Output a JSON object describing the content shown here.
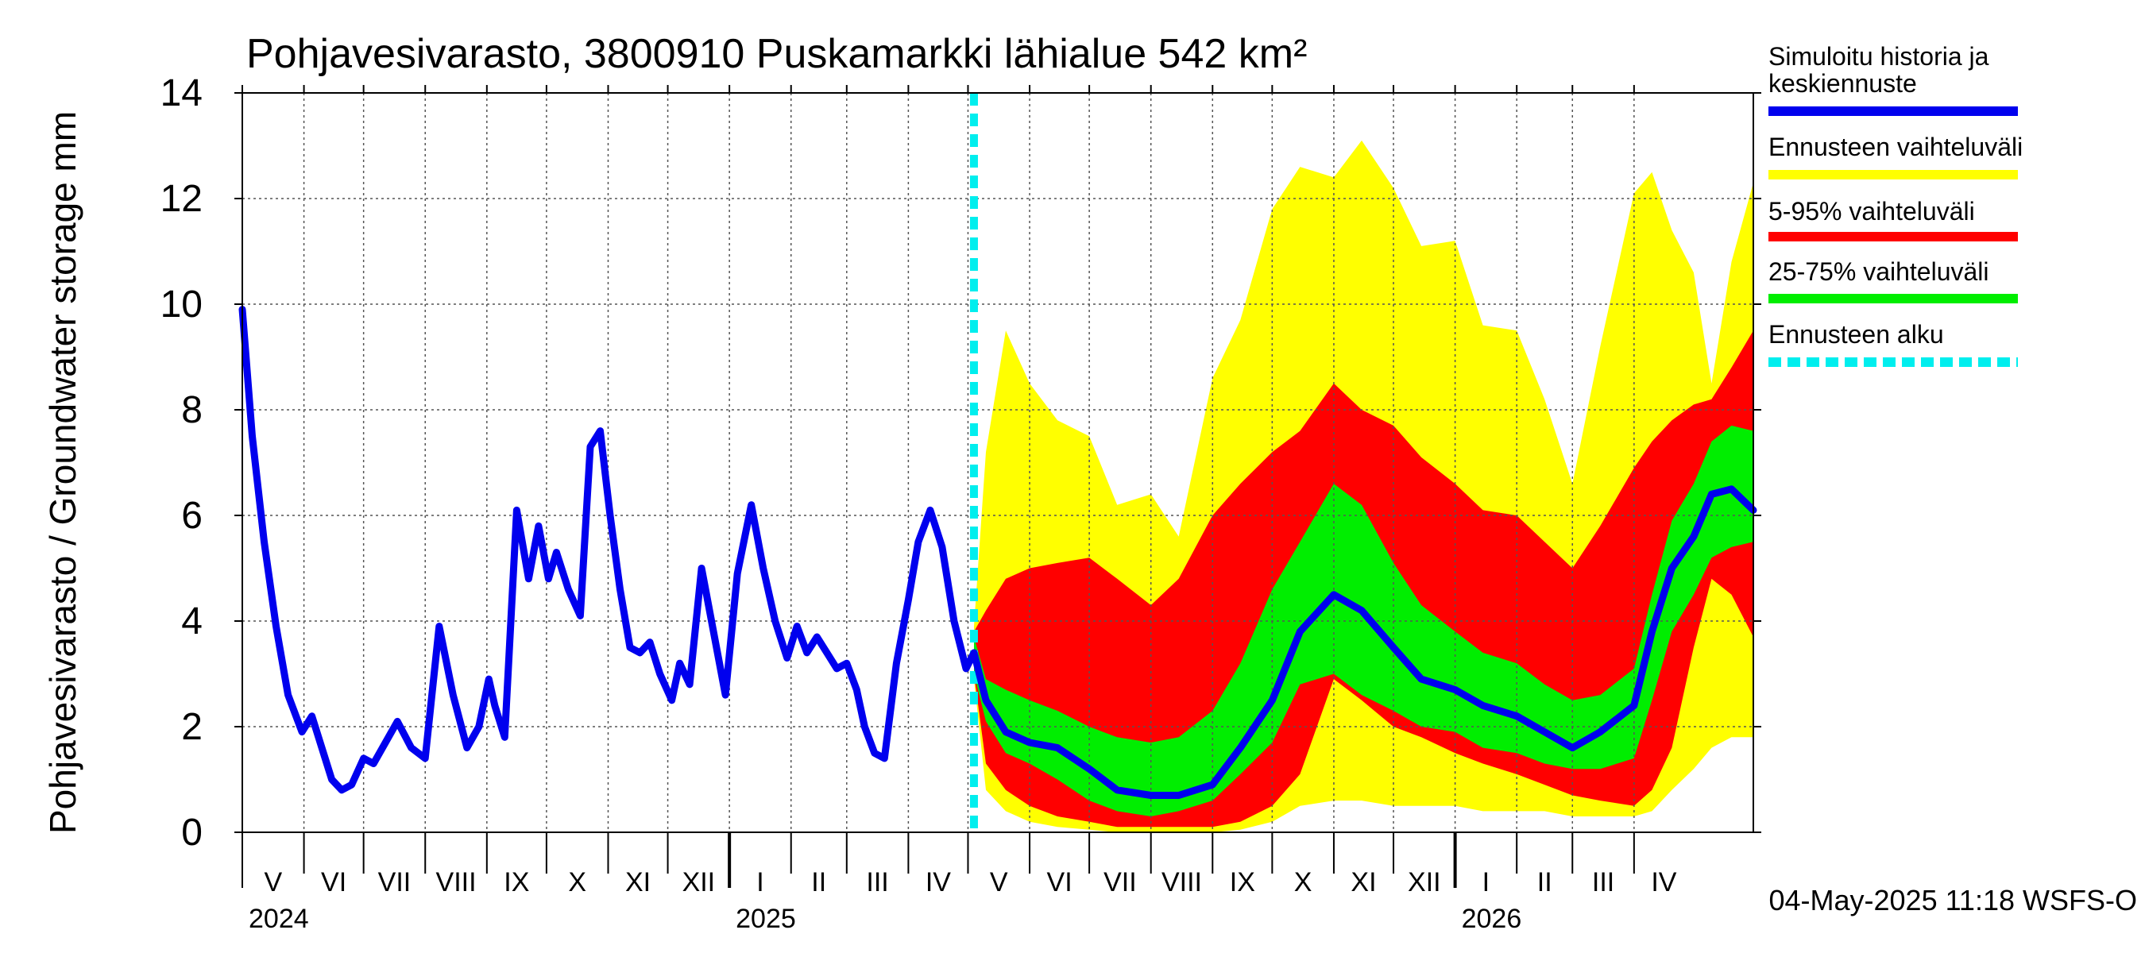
{
  "chart_data": {
    "type": "area",
    "title": "Pohjavesivarasto, 3800910 Puskamarkki lähialue 542 km²",
    "ylabel": "Pohjavesivarasto / Groundwater storage   mm",
    "ylim": [
      0,
      14
    ],
    "yticks": [
      0,
      2,
      4,
      6,
      8,
      10,
      12,
      14
    ],
    "grid": true,
    "legend_position": "right",
    "x_start": "2024-05-01",
    "x_end": "2026-05-31",
    "forecast_start": "2025-05-04",
    "month_labels": [
      {
        "label": "V",
        "month": "2024-05"
      },
      {
        "label": "VI",
        "month": "2024-06"
      },
      {
        "label": "VII",
        "month": "2024-07"
      },
      {
        "label": "VIII",
        "month": "2024-08"
      },
      {
        "label": "IX",
        "month": "2024-09"
      },
      {
        "label": "X",
        "month": "2024-10"
      },
      {
        "label": "XI",
        "month": "2024-11"
      },
      {
        "label": "XII",
        "month": "2024-12"
      },
      {
        "label": "I",
        "month": "2025-01"
      },
      {
        "label": "II",
        "month": "2025-02"
      },
      {
        "label": "III",
        "month": "2025-03"
      },
      {
        "label": "IV",
        "month": "2025-04"
      },
      {
        "label": "V",
        "month": "2025-05"
      },
      {
        "label": "VI",
        "month": "2025-06"
      },
      {
        "label": "VII",
        "month": "2025-07"
      },
      {
        "label": "VIII",
        "month": "2025-08"
      },
      {
        "label": "IX",
        "month": "2025-09"
      },
      {
        "label": "X",
        "month": "2025-10"
      },
      {
        "label": "XI",
        "month": "2025-11"
      },
      {
        "label": "XII",
        "month": "2025-12"
      },
      {
        "label": "I",
        "month": "2026-01"
      },
      {
        "label": "II",
        "month": "2026-02"
      },
      {
        "label": "III",
        "month": "2026-03"
      },
      {
        "label": "IV",
        "month": "2026-04"
      }
    ],
    "year_labels": [
      {
        "label": "2024",
        "date": "2024-05-01"
      },
      {
        "label": "2025",
        "date": "2025-01-01"
      },
      {
        "label": "2026",
        "date": "2026-01-01"
      }
    ],
    "legend": [
      {
        "label": "Simuloitu historia ja keskiennuste",
        "color": "#0000ee",
        "style": "solid"
      },
      {
        "label": "Ennusteen vaihteluväli",
        "color": "#ffff00",
        "style": "solid"
      },
      {
        "label": "5-95% vaihteluväli",
        "color": "#ff0000",
        "style": "solid"
      },
      {
        "label": "25-75% vaihteluväli",
        "color": "#00ee00",
        "style": "solid"
      },
      {
        "label": "Ennusteen alku",
        "color": "#00eeee",
        "style": "dashed"
      }
    ],
    "history": {
      "name": "Simuloitu historia ja keskiennuste",
      "x": [
        "2024-05-01",
        "2024-05-06",
        "2024-05-12",
        "2024-05-18",
        "2024-05-24",
        "2024-05-31",
        "2024-06-05",
        "2024-06-10",
        "2024-06-15",
        "2024-06-20",
        "2024-06-25",
        "2024-07-01",
        "2024-07-06",
        "2024-07-12",
        "2024-07-18",
        "2024-07-25",
        "2024-08-01",
        "2024-08-08",
        "2024-08-15",
        "2024-08-22",
        "2024-08-28",
        "2024-09-02",
        "2024-09-05",
        "2024-09-10",
        "2024-09-16",
        "2024-09-22",
        "2024-09-27",
        "2024-10-02",
        "2024-10-06",
        "2024-10-12",
        "2024-10-18",
        "2024-10-23",
        "2024-10-28",
        "2024-11-02",
        "2024-11-07",
        "2024-11-12",
        "2024-11-17",
        "2024-11-22",
        "2024-11-27",
        "2024-12-03",
        "2024-12-07",
        "2024-12-12",
        "2024-12-18",
        "2024-12-24",
        "2024-12-30",
        "2025-01-05",
        "2025-01-12",
        "2025-01-18",
        "2025-01-24",
        "2025-01-30",
        "2025-02-04",
        "2025-02-09",
        "2025-02-14",
        "2025-02-19",
        "2025-02-24",
        "2025-03-01",
        "2025-03-06",
        "2025-03-10",
        "2025-03-15",
        "2025-03-20",
        "2025-03-26",
        "2025-04-01",
        "2025-04-06",
        "2025-04-12",
        "2025-04-18",
        "2025-04-24",
        "2025-04-30",
        "2025-05-04"
      ],
      "y": [
        9.9,
        7.5,
        5.5,
        3.9,
        2.6,
        1.9,
        2.2,
        1.6,
        1.0,
        0.8,
        0.9,
        1.4,
        1.3,
        1.7,
        2.1,
        1.6,
        1.4,
        3.9,
        2.6,
        1.6,
        2.0,
        2.9,
        2.4,
        1.8,
        6.1,
        4.8,
        5.8,
        4.8,
        5.3,
        4.6,
        4.1,
        7.3,
        7.6,
        6.0,
        4.6,
        3.5,
        3.4,
        3.6,
        3.0,
        2.5,
        3.2,
        2.8,
        5.0,
        3.8,
        2.6,
        4.9,
        6.2,
        5.0,
        4.0,
        3.3,
        3.9,
        3.4,
        3.7,
        3.4,
        3.1,
        3.2,
        2.7,
        2.0,
        1.5,
        1.4,
        3.2,
        4.4,
        5.5,
        6.1,
        5.4,
        4.0,
        3.1,
        3.4
      ]
    },
    "forecast": {
      "x": [
        "2025-05-04",
        "2025-05-10",
        "2025-05-20",
        "2025-06-01",
        "2025-06-15",
        "2025-07-01",
        "2025-07-15",
        "2025-08-01",
        "2025-08-15",
        "2025-09-01",
        "2025-09-15",
        "2025-10-01",
        "2025-10-15",
        "2025-11-01",
        "2025-11-15",
        "2025-12-01",
        "2025-12-15",
        "2026-01-01",
        "2026-01-15",
        "2026-02-01",
        "2026-02-15",
        "2026-03-01",
        "2026-03-15",
        "2026-04-01",
        "2026-04-10",
        "2026-04-20",
        "2026-05-01",
        "2026-05-10",
        "2026-05-20",
        "2026-05-31"
      ],
      "median": [
        3.3,
        2.5,
        1.9,
        1.7,
        1.6,
        1.2,
        0.8,
        0.7,
        0.7,
        0.9,
        1.6,
        2.5,
        3.8,
        4.5,
        4.2,
        3.5,
        2.9,
        2.7,
        2.4,
        2.2,
        1.9,
        1.6,
        1.9,
        2.4,
        3.8,
        5.0,
        5.6,
        6.4,
        6.5,
        6.1
      ],
      "p25": [
        3.0,
        2.1,
        1.5,
        1.3,
        1.0,
        0.6,
        0.4,
        0.3,
        0.4,
        0.6,
        1.1,
        1.7,
        2.8,
        3.0,
        2.6,
        2.3,
        2.0,
        1.9,
        1.6,
        1.5,
        1.3,
        1.2,
        1.2,
        1.4,
        2.5,
        3.8,
        4.5,
        5.2,
        5.4,
        5.5
      ],
      "p75": [
        3.7,
        2.9,
        2.7,
        2.5,
        2.3,
        2.0,
        1.8,
        1.7,
        1.8,
        2.3,
        3.2,
        4.6,
        5.5,
        6.6,
        6.2,
        5.1,
        4.3,
        3.8,
        3.4,
        3.2,
        2.8,
        2.5,
        2.6,
        3.1,
        4.5,
        5.9,
        6.6,
        7.4,
        7.7,
        7.6
      ],
      "p5": [
        3.0,
        1.3,
        0.8,
        0.5,
        0.3,
        0.2,
        0.1,
        0.1,
        0.1,
        0.1,
        0.2,
        0.5,
        1.1,
        2.9,
        2.5,
        2.0,
        1.8,
        1.5,
        1.3,
        1.1,
        0.9,
        0.7,
        0.6,
        0.5,
        0.8,
        1.6,
        3.5,
        4.8,
        4.5,
        3.7
      ],
      "p95": [
        3.8,
        4.2,
        4.8,
        5.0,
        5.1,
        5.2,
        4.8,
        4.3,
        4.8,
        6.0,
        6.6,
        7.2,
        7.6,
        8.5,
        8.0,
        7.7,
        7.1,
        6.6,
        6.1,
        6.0,
        5.5,
        5.0,
        5.8,
        6.9,
        7.4,
        7.8,
        8.1,
        8.2,
        8.8,
        9.5
      ],
      "min": [
        2.9,
        0.8,
        0.4,
        0.2,
        0.1,
        0.05,
        0.0,
        0.0,
        0.0,
        0.0,
        0.05,
        0.2,
        0.5,
        0.6,
        0.6,
        0.5,
        0.5,
        0.5,
        0.4,
        0.4,
        0.4,
        0.3,
        0.3,
        0.3,
        0.4,
        0.8,
        1.2,
        1.6,
        1.8,
        1.8
      ],
      "max": [
        3.9,
        7.2,
        9.5,
        8.5,
        7.8,
        7.5,
        6.2,
        6.4,
        5.6,
        8.6,
        9.7,
        11.8,
        12.6,
        12.4,
        13.1,
        12.2,
        11.1,
        11.2,
        9.6,
        9.5,
        8.2,
        6.6,
        9.2,
        12.1,
        12.5,
        11.4,
        10.6,
        8.5,
        10.8,
        12.3
      ]
    }
  },
  "footer_timestamp": "04-May-2025 11:18 WSFS-O"
}
